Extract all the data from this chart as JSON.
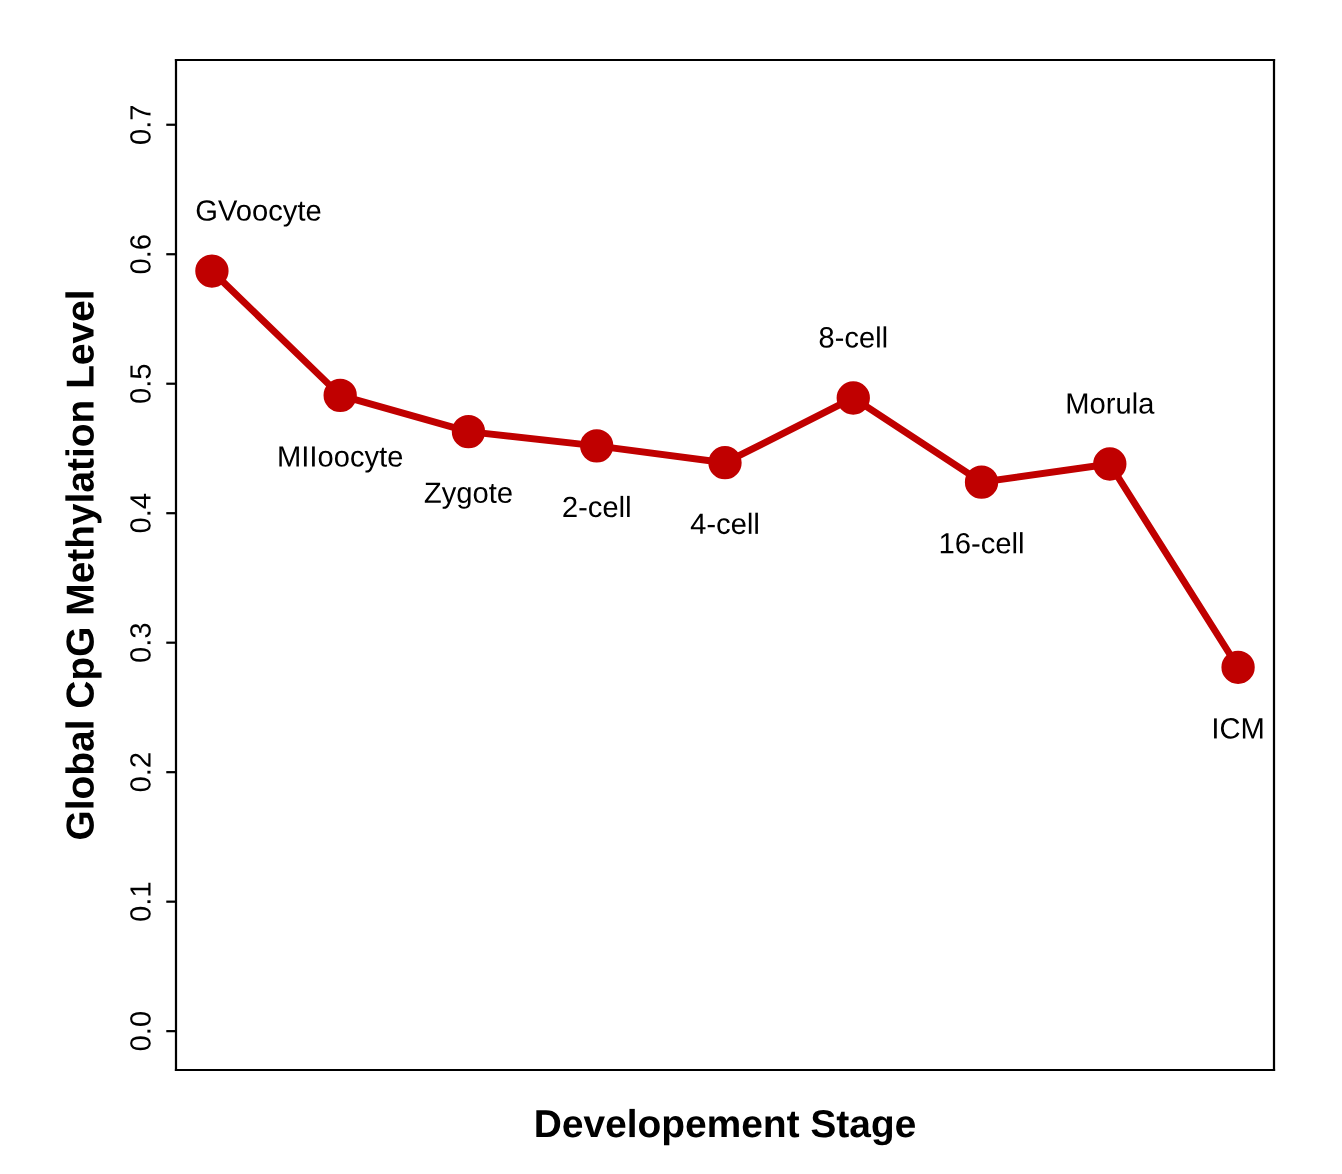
{
  "chart_data": {
    "type": "line",
    "xlabel": "Developement Stage",
    "ylabel": "Global CpG Methylation Level",
    "categories": [
      "GVoocyte",
      "MIIoocyte",
      "Zygote",
      "2-cell",
      "4-cell",
      "8-cell",
      "16-cell",
      "Morula",
      "ICM"
    ],
    "series": [
      {
        "color": "#c00000",
        "values": [
          0.587,
          0.491,
          0.463,
          0.452,
          0.439,
          0.489,
          0.424,
          0.438,
          0.281
        ]
      }
    ],
    "ylim": [
      -0.03,
      0.75
    ],
    "yticks": [
      {
        "value": 0,
        "label": "0.0"
      },
      0.1,
      0.2,
      0.3,
      0.4,
      0.5,
      0.6,
      0.7
    ],
    "tick_labels": "y",
    "marker": "circle",
    "line_style": "solid",
    "grid": false,
    "legend": false
  }
}
